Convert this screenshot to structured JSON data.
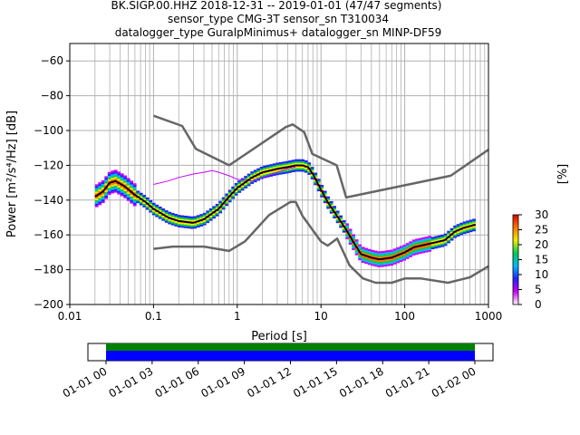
{
  "title_lines": [
    "BK.SIGP.00.HHZ   2018-12-31 -- 2019-01-01  (47/47 segments)",
    "sensor_type CMG-3T sensor_sn T310034",
    "datalogger_type GuralpMinimus+ datalogger_sn MINP-DF59"
  ],
  "chart_data": {
    "type": "heatmap",
    "xlabel": "Period [s]",
    "ylabel": "Power [m²/s⁴/Hz] [dB]",
    "x_scale": "log",
    "xlim": [
      0.01,
      1000
    ],
    "ylim": [
      -200,
      -50
    ],
    "x_ticks": [
      {
        "value": 0.01,
        "label": "0.01"
      },
      {
        "value": 0.1,
        "label": "0.1"
      },
      {
        "value": 1,
        "label": "1"
      },
      {
        "value": 10,
        "label": "10"
      },
      {
        "value": 100,
        "label": "100"
      },
      {
        "value": 1000,
        "label": "1000"
      }
    ],
    "y_ticks": [
      -60,
      -80,
      -100,
      -120,
      -140,
      -160,
      -180,
      -200
    ],
    "grid": true,
    "noise_models": {
      "color": "#666666",
      "high": {
        "period": [
          0.1,
          0.22,
          0.32,
          0.8,
          3.8,
          4.6,
          6.3,
          7.9,
          15.4,
          20,
          354.8,
          1000
        ],
        "db": [
          -91.5,
          -97.4,
          -110.5,
          -120,
          -98,
          -96.5,
          -101,
          -113.5,
          -120,
          -138.5,
          -126,
          -111
        ]
      },
      "low": {
        "period": [
          0.1,
          0.17,
          0.4,
          0.8,
          1.24,
          2.4,
          4.3,
          5,
          6,
          10,
          12,
          15.6,
          21.9,
          31.6,
          45,
          70,
          101,
          154,
          328,
          600,
          1000
        ],
        "db": [
          -168,
          -166.7,
          -166.7,
          -169.2,
          -163.7,
          -148.6,
          -141.1,
          -141.1,
          -149,
          -163.8,
          -166.2,
          -162.1,
          -177.5,
          -185,
          -187.5,
          -187.5,
          -185,
          -185,
          -187.5,
          -184.4,
          -178
        ]
      }
    },
    "mode_line": {
      "color": "#000000",
      "period": [
        0.02,
        0.025,
        0.03,
        0.035,
        0.045,
        0.06,
        0.08,
        0.1,
        0.15,
        0.2,
        0.3,
        0.4,
        0.6,
        0.8,
        1,
        1.5,
        2,
        3,
        4,
        5,
        6,
        7,
        8,
        10,
        12,
        15,
        20,
        25,
        30,
        40,
        50,
        70,
        100,
        130,
        200,
        300,
        400,
        500,
        700
      ],
      "db": [
        -138,
        -135,
        -130,
        -129,
        -132,
        -137,
        -141,
        -145,
        -150,
        -152,
        -153,
        -151,
        -145,
        -138,
        -133,
        -127,
        -124,
        -122,
        -121,
        -120,
        -120,
        -121,
        -125,
        -134,
        -141,
        -148,
        -157,
        -165,
        -171,
        -173,
        -174,
        -173,
        -170,
        -167,
        -165,
        -163,
        -158,
        -156,
        -154
      ]
    },
    "spread_line": {
      "color": "#cc00ff",
      "period": [
        0.1,
        0.15,
        0.2,
        0.3,
        0.4,
        0.5,
        0.6,
        0.8,
        1,
        1.5,
        2,
        3,
        4,
        5
      ],
      "db": [
        -131,
        -129,
        -127,
        -125,
        -124,
        -123,
        -124,
        -126,
        -128,
        -129,
        -127,
        -124,
        -122,
        -121
      ]
    },
    "colorbar": {
      "label": "[%]",
      "range": [
        0,
        30
      ],
      "ticks": [
        0,
        5,
        10,
        15,
        20,
        25,
        30
      ],
      "colors": [
        "#ffffff",
        "#cc00ff",
        "#2222ff",
        "#00bbff",
        "#00cc55",
        "#eeee00",
        "#ff7700",
        "#dd0000"
      ]
    }
  },
  "timeline": {
    "tick_labels": [
      "01-01 00",
      "01-01 03",
      "01-01 06",
      "01-01 09",
      "01-01 12",
      "01-01 15",
      "01-01 18",
      "01-01 21",
      "01-02 00"
    ],
    "coverage_colors": {
      "top": "#008000",
      "bottom": "#0000ff"
    }
  }
}
